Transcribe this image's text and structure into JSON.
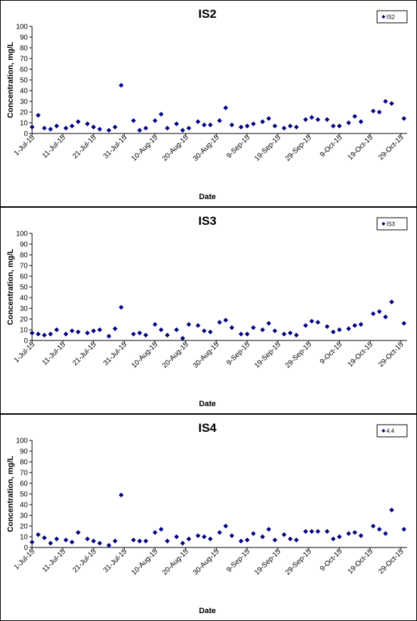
{
  "colors": {
    "marker": "#000080",
    "axis": "#000000",
    "background": "#ffffff"
  },
  "chart_data": [
    {
      "type": "scatter",
      "title": "IS2",
      "xlabel": "Date",
      "ylabel": "Concentration, mg/L",
      "legend": "IS2",
      "legend_position": "top-right",
      "xlim": [
        "2015-07-01",
        "2015-10-31"
      ],
      "ylim": [
        0,
        100
      ],
      "y_ticks": [
        "0",
        "10",
        "20",
        "30",
        "40",
        "50",
        "60",
        "70",
        "80",
        "90",
        "100"
      ],
      "x_ticks": [
        "1-Jul-15",
        "11-Jul-15",
        "21-Jul-15",
        "31-Jul-15",
        "10-Aug-15",
        "20-Aug-15",
        "30-Aug-15",
        "9-Sep-15",
        "19-Sep-15",
        "29-Sep-15",
        "9-Oct-15",
        "19-Oct-15",
        "29-Oct-15"
      ],
      "grid": false,
      "series": [
        {
          "name": "IS2",
          "points": [
            [
              "2015-07-01",
              6
            ],
            [
              "2015-07-03",
              17
            ],
            [
              "2015-07-05",
              5
            ],
            [
              "2015-07-07",
              4
            ],
            [
              "2015-07-09",
              7
            ],
            [
              "2015-07-12",
              5
            ],
            [
              "2015-07-14",
              7
            ],
            [
              "2015-07-16",
              11
            ],
            [
              "2015-07-19",
              9
            ],
            [
              "2015-07-21",
              6
            ],
            [
              "2015-07-23",
              4
            ],
            [
              "2015-07-26",
              3
            ],
            [
              "2015-07-28",
              6
            ],
            [
              "2015-07-30",
              45
            ],
            [
              "2015-08-03",
              12
            ],
            [
              "2015-08-05",
              3
            ],
            [
              "2015-08-07",
              5
            ],
            [
              "2015-08-10",
              12
            ],
            [
              "2015-08-12",
              18
            ],
            [
              "2015-08-14",
              5
            ],
            [
              "2015-08-17",
              9
            ],
            [
              "2015-08-19",
              3
            ],
            [
              "2015-08-21",
              5
            ],
            [
              "2015-08-24",
              11
            ],
            [
              "2015-08-26",
              8
            ],
            [
              "2015-08-28",
              8
            ],
            [
              "2015-08-31",
              12
            ],
            [
              "2015-09-02",
              24
            ],
            [
              "2015-09-04",
              8
            ],
            [
              "2015-09-07",
              6
            ],
            [
              "2015-09-09",
              7
            ],
            [
              "2015-09-11",
              9
            ],
            [
              "2015-09-14",
              11
            ],
            [
              "2015-09-16",
              14
            ],
            [
              "2015-09-18",
              7
            ],
            [
              "2015-09-21",
              5
            ],
            [
              "2015-09-23",
              7
            ],
            [
              "2015-09-25",
              6
            ],
            [
              "2015-09-28",
              13
            ],
            [
              "2015-09-30",
              15
            ],
            [
              "2015-10-02",
              13
            ],
            [
              "2015-10-05",
              13
            ],
            [
              "2015-10-07",
              7
            ],
            [
              "2015-10-09",
              7
            ],
            [
              "2015-10-12",
              10
            ],
            [
              "2015-10-14",
              16
            ],
            [
              "2015-10-16",
              11
            ],
            [
              "2015-10-20",
              21
            ],
            [
              "2015-10-22",
              20
            ],
            [
              "2015-10-24",
              30
            ],
            [
              "2015-10-26",
              28
            ],
            [
              "2015-10-30",
              14
            ]
          ]
        }
      ]
    },
    {
      "type": "scatter",
      "title": "IS3",
      "xlabel": "Date",
      "ylabel": "Concentration, mg/L",
      "legend": "IS3",
      "legend_position": "top-right",
      "xlim": [
        "2015-07-01",
        "2015-10-31"
      ],
      "ylim": [
        0,
        100
      ],
      "y_ticks": [
        "0",
        "10",
        "20",
        "30",
        "40",
        "50",
        "60",
        "70",
        "80",
        "90",
        "100"
      ],
      "x_ticks": [
        "1-Jul-15",
        "11-Jul-15",
        "21-Jul-15",
        "31-Jul-15",
        "10-Aug-15",
        "20-Aug-15",
        "30-Aug-15",
        "9-Sep-15",
        "19-Sep-15",
        "29-Sep-15",
        "9-Oct-15",
        "19-Oct-15",
        "29-Oct-15"
      ],
      "grid": false,
      "series": [
        {
          "name": "IS3",
          "points": [
            [
              "2015-07-01",
              7
            ],
            [
              "2015-07-03",
              6
            ],
            [
              "2015-07-05",
              5
            ],
            [
              "2015-07-07",
              6
            ],
            [
              "2015-07-09",
              10
            ],
            [
              "2015-07-12",
              6
            ],
            [
              "2015-07-14",
              9
            ],
            [
              "2015-07-16",
              8
            ],
            [
              "2015-07-19",
              7
            ],
            [
              "2015-07-21",
              9
            ],
            [
              "2015-07-23",
              10
            ],
            [
              "2015-07-26",
              4
            ],
            [
              "2015-07-28",
              11
            ],
            [
              "2015-07-30",
              31
            ],
            [
              "2015-08-03",
              6
            ],
            [
              "2015-08-05",
              7
            ],
            [
              "2015-08-07",
              5
            ],
            [
              "2015-08-10",
              15
            ],
            [
              "2015-08-12",
              10
            ],
            [
              "2015-08-14",
              5
            ],
            [
              "2015-08-17",
              10
            ],
            [
              "2015-08-19",
              2
            ],
            [
              "2015-08-21",
              15
            ],
            [
              "2015-08-24",
              14
            ],
            [
              "2015-08-26",
              9
            ],
            [
              "2015-08-28",
              8
            ],
            [
              "2015-08-31",
              17
            ],
            [
              "2015-09-02",
              19
            ],
            [
              "2015-09-04",
              12
            ],
            [
              "2015-09-07",
              6
            ],
            [
              "2015-09-09",
              6
            ],
            [
              "2015-09-11",
              12
            ],
            [
              "2015-09-14",
              10
            ],
            [
              "2015-09-16",
              16
            ],
            [
              "2015-09-18",
              9
            ],
            [
              "2015-09-21",
              6
            ],
            [
              "2015-09-23",
              7
            ],
            [
              "2015-09-25",
              5
            ],
            [
              "2015-09-28",
              14
            ],
            [
              "2015-09-30",
              18
            ],
            [
              "2015-10-02",
              17
            ],
            [
              "2015-10-05",
              13
            ],
            [
              "2015-10-07",
              8
            ],
            [
              "2015-10-09",
              10
            ],
            [
              "2015-10-12",
              11
            ],
            [
              "2015-10-14",
              14
            ],
            [
              "2015-10-16",
              15
            ],
            [
              "2015-10-20",
              25
            ],
            [
              "2015-10-22",
              27
            ],
            [
              "2015-10-24",
              22
            ],
            [
              "2015-10-26",
              36
            ],
            [
              "2015-10-30",
              16
            ]
          ]
        }
      ]
    },
    {
      "type": "scatter",
      "title": "IS4",
      "xlabel": "Date",
      "ylabel": "Concentration, mg/L",
      "legend": "4.4",
      "legend_position": "top-right",
      "xlim": [
        "2015-07-01",
        "2015-10-31"
      ],
      "ylim": [
        0,
        100
      ],
      "y_ticks": [
        "0",
        "10",
        "20",
        "30",
        "40",
        "50",
        "60",
        "70",
        "80",
        "90",
        "100"
      ],
      "x_ticks": [
        "1-Jul-15",
        "11-Jul-15",
        "21-Jul-15",
        "31-Jul-15",
        "10-Aug-15",
        "20-Aug-15",
        "30-Aug-15",
        "9-Sep-15",
        "19-Sep-15",
        "29-Sep-15",
        "9-Oct-15",
        "19-Oct-15",
        "29-Oct-15"
      ],
      "grid": false,
      "series": [
        {
          "name": "4.4",
          "points": [
            [
              "2015-07-01",
              5
            ],
            [
              "2015-07-03",
              12
            ],
            [
              "2015-07-05",
              9
            ],
            [
              "2015-07-07",
              4
            ],
            [
              "2015-07-09",
              8
            ],
            [
              "2015-07-12",
              7
            ],
            [
              "2015-07-14",
              5
            ],
            [
              "2015-07-16",
              14
            ],
            [
              "2015-07-19",
              8
            ],
            [
              "2015-07-21",
              6
            ],
            [
              "2015-07-23",
              4
            ],
            [
              "2015-07-26",
              2
            ],
            [
              "2015-07-28",
              6
            ],
            [
              "2015-07-30",
              49
            ],
            [
              "2015-08-03",
              7
            ],
            [
              "2015-08-05",
              6
            ],
            [
              "2015-08-07",
              6
            ],
            [
              "2015-08-10",
              14
            ],
            [
              "2015-08-12",
              17
            ],
            [
              "2015-08-14",
              6
            ],
            [
              "2015-08-17",
              10
            ],
            [
              "2015-08-19",
              4
            ],
            [
              "2015-08-21",
              8
            ],
            [
              "2015-08-24",
              11
            ],
            [
              "2015-08-26",
              10
            ],
            [
              "2015-08-28",
              8
            ],
            [
              "2015-08-31",
              14
            ],
            [
              "2015-09-02",
              20
            ],
            [
              "2015-09-04",
              11
            ],
            [
              "2015-09-07",
              6
            ],
            [
              "2015-09-09",
              7
            ],
            [
              "2015-09-11",
              13
            ],
            [
              "2015-09-14",
              10
            ],
            [
              "2015-09-16",
              17
            ],
            [
              "2015-09-18",
              7
            ],
            [
              "2015-09-21",
              12
            ],
            [
              "2015-09-23",
              8
            ],
            [
              "2015-09-25",
              7
            ],
            [
              "2015-09-28",
              15
            ],
            [
              "2015-09-30",
              15
            ],
            [
              "2015-10-02",
              15
            ],
            [
              "2015-10-05",
              15
            ],
            [
              "2015-10-07",
              8
            ],
            [
              "2015-10-09",
              10
            ],
            [
              "2015-10-12",
              13
            ],
            [
              "2015-10-14",
              14
            ],
            [
              "2015-10-16",
              11
            ],
            [
              "2015-10-20",
              20
            ],
            [
              "2015-10-22",
              17
            ],
            [
              "2015-10-24",
              13
            ],
            [
              "2015-10-26",
              35
            ],
            [
              "2015-10-30",
              17
            ]
          ]
        }
      ]
    }
  ]
}
